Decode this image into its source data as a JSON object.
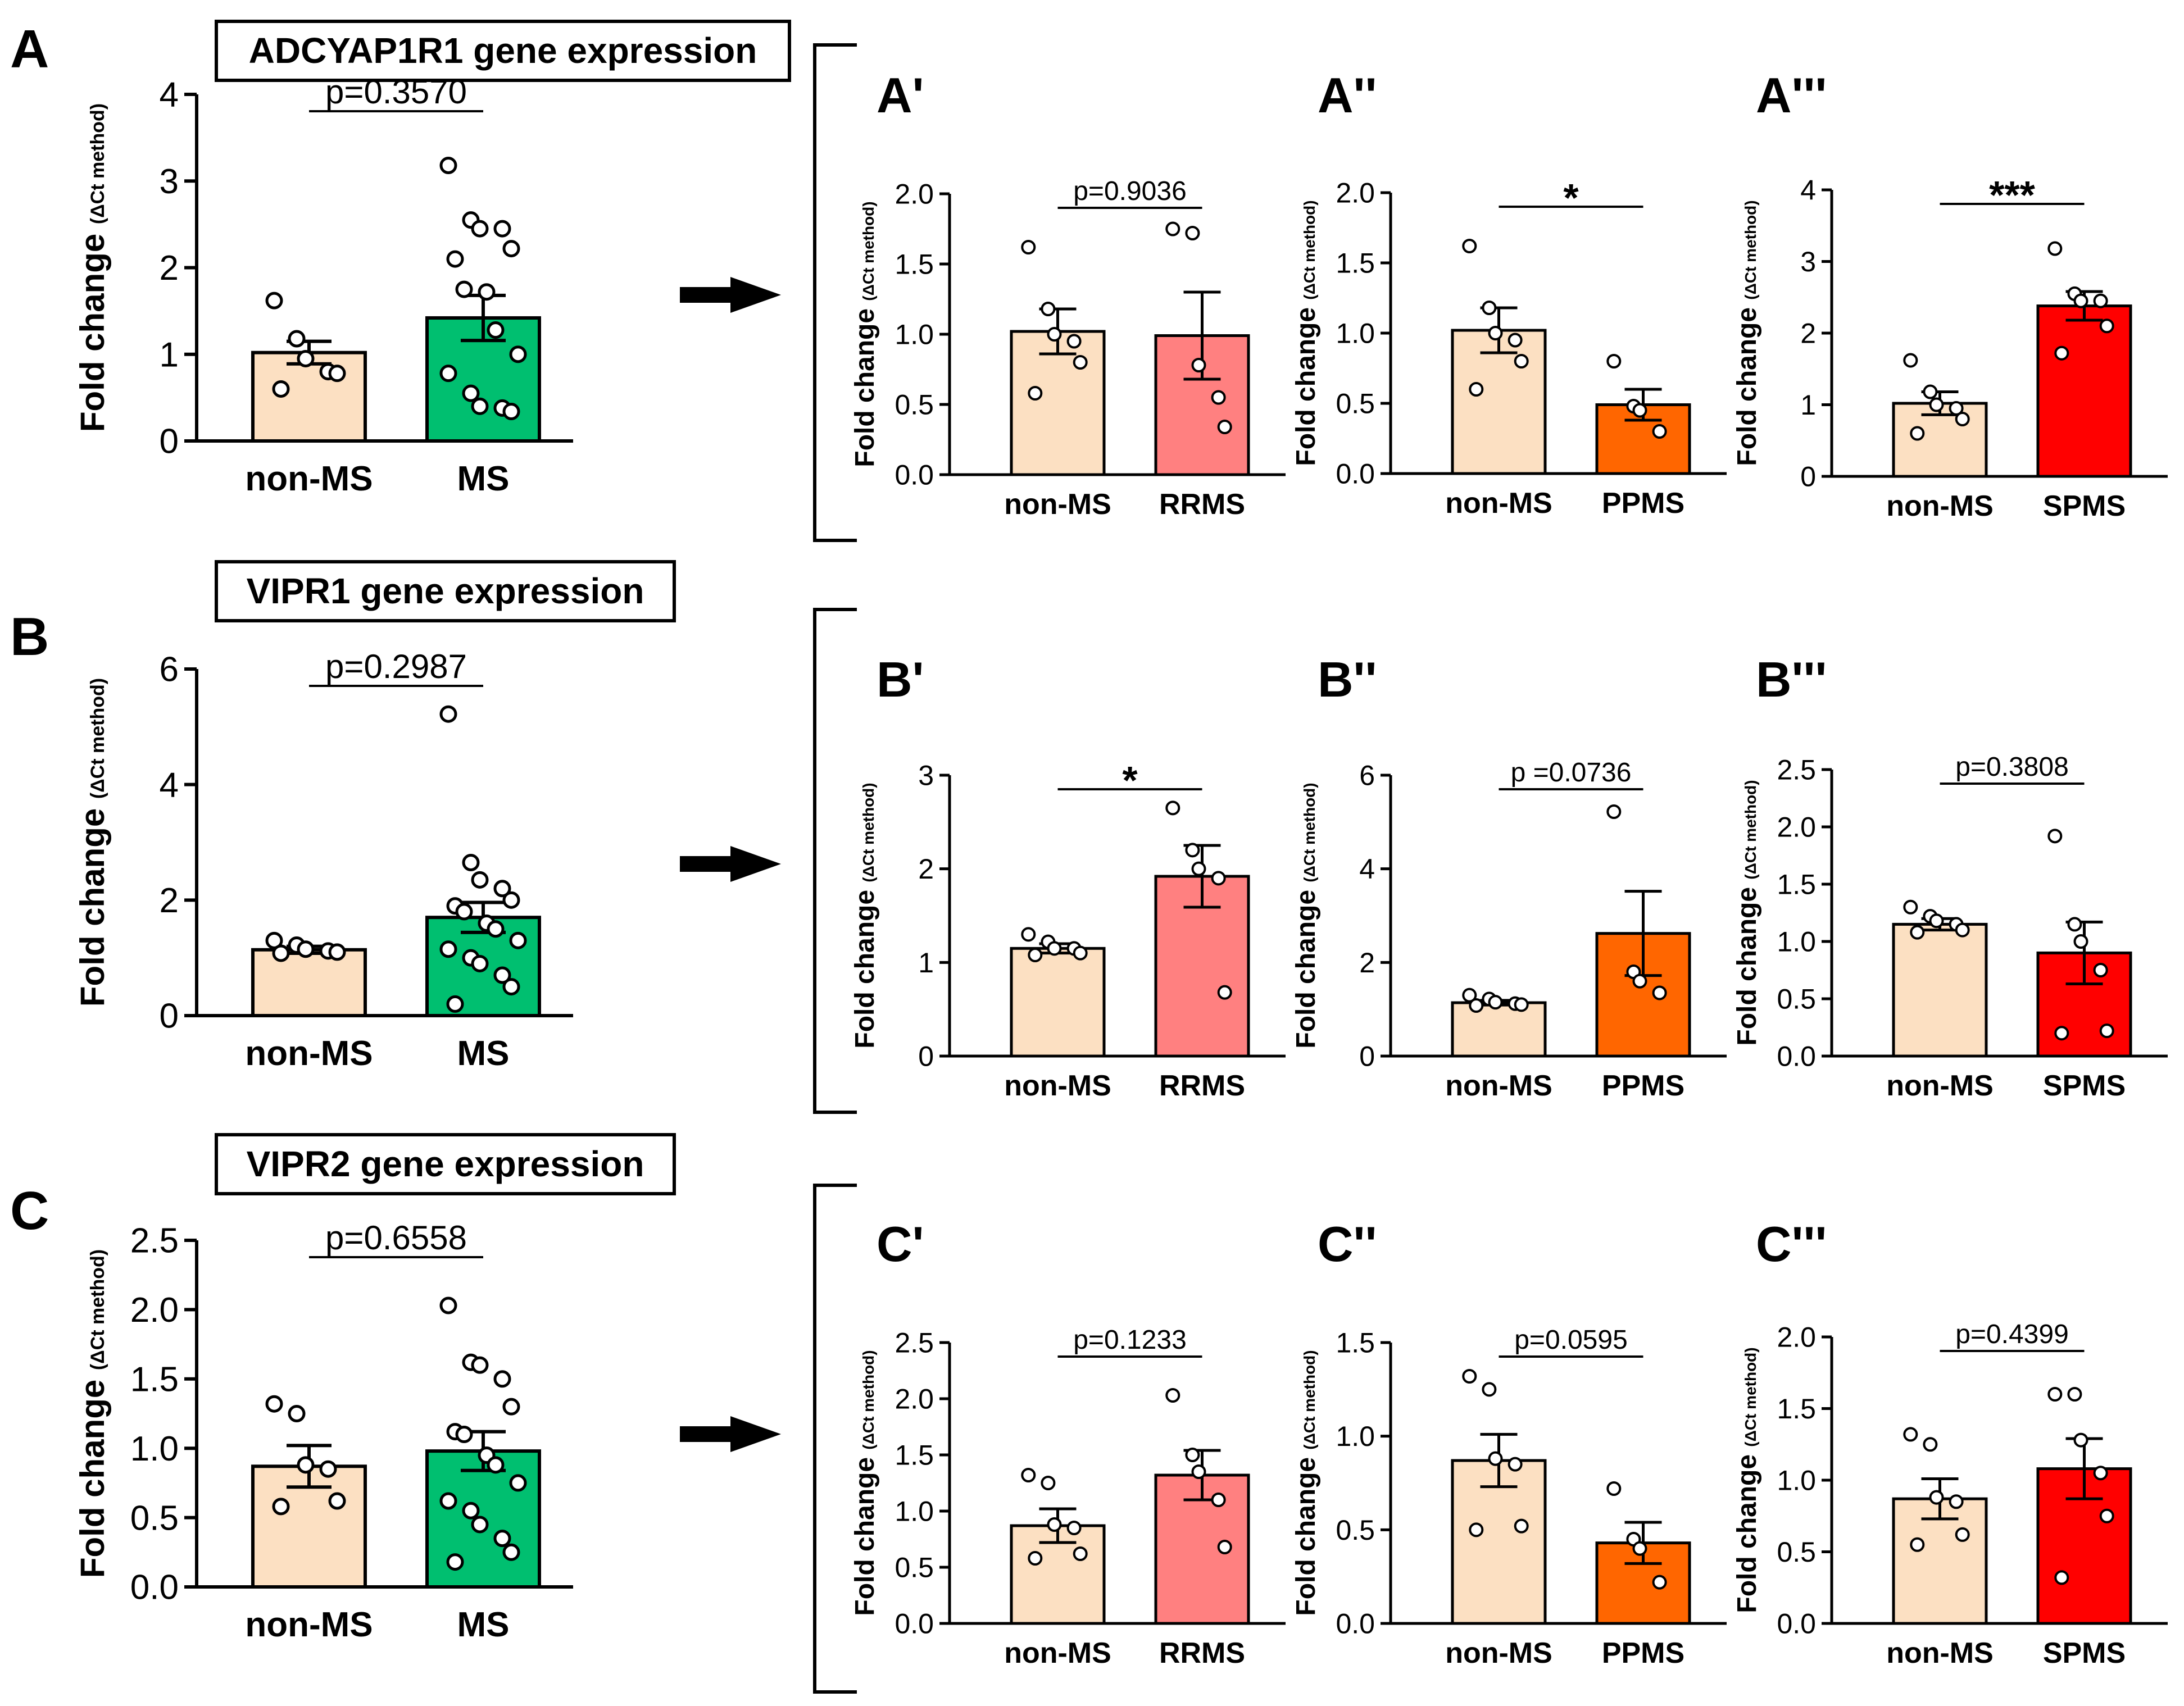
{
  "colors": {
    "non_ms": "#FCE0C2",
    "ms": "#00BF70",
    "rrms": "#FF8080",
    "ppms": "#FF6600",
    "spms": "#FF0000"
  },
  "rows": [
    {
      "letter": "A",
      "box_title": "ADCYAP1R1 gene expression",
      "main": {
        "ymax": 4,
        "ticks": [
          "0",
          "1",
          "2",
          "3",
          "4"
        ],
        "sig": "p=0.3570",
        "bars": [
          {
            "label": "non-MS",
            "value": 1.02,
            "sem": 0.13,
            "color_key": "non_ms",
            "points": [
              1.62,
              1.18,
              0.95,
              0.8,
              0.78,
              0.6
            ]
          },
          {
            "label": "MS",
            "value": 1.42,
            "sem": 0.26,
            "color_key": "ms",
            "points": [
              3.18,
              2.55,
              2.45,
              2.45,
              2.22,
              2.1,
              1.75,
              1.72,
              1.28,
              1.0,
              0.78,
              0.55,
              0.4,
              0.38,
              0.34
            ]
          }
        ]
      },
      "subs": [
        {
          "letter": "A'",
          "ymax": 2.0,
          "ticks": [
            "0.0",
            "0.5",
            "1.0",
            "1.5",
            "2.0"
          ],
          "sig": "p=0.9036",
          "bars": [
            {
              "label": "non-MS",
              "value": 1.02,
              "sem": 0.16,
              "color_key": "non_ms",
              "points": [
                1.62,
                1.18,
                1.0,
                0.95,
                0.8,
                0.58
              ]
            },
            {
              "label": "RRMS",
              "value": 0.99,
              "sem": 0.31,
              "color_key": "rrms",
              "points": [
                1.75,
                1.72,
                0.78,
                0.55,
                0.34
              ]
            }
          ]
        },
        {
          "letter": "A''",
          "ymax": 2.0,
          "ticks": [
            "0.0",
            "0.5",
            "1.0",
            "1.5",
            "2.0"
          ],
          "sig": "*",
          "bars": [
            {
              "label": "non-MS",
              "value": 1.02,
              "sem": 0.16,
              "color_key": "non_ms",
              "points": [
                1.62,
                1.18,
                1.0,
                0.95,
                0.8,
                0.6
              ]
            },
            {
              "label": "PPMS",
              "value": 0.49,
              "sem": 0.11,
              "color_key": "ppms",
              "points": [
                0.8,
                0.48,
                0.45,
                0.3
              ]
            }
          ]
        },
        {
          "letter": "A'''",
          "ymax": 4,
          "ticks": [
            "0",
            "1",
            "2",
            "3",
            "4"
          ],
          "sig": "***",
          "bars": [
            {
              "label": "non-MS",
              "value": 1.02,
              "sem": 0.16,
              "color_key": "non_ms",
              "points": [
                1.62,
                1.18,
                1.0,
                0.95,
                0.8,
                0.6
              ]
            },
            {
              "label": "SPMS",
              "value": 2.38,
              "sem": 0.2,
              "color_key": "spms",
              "points": [
                3.18,
                2.55,
                2.45,
                2.45,
                2.1,
                1.72
              ]
            }
          ]
        }
      ]
    },
    {
      "letter": "B",
      "box_title": "VIPR1 gene expression",
      "main": {
        "ymax": 6,
        "ticks": [
          "0",
          "2",
          "4",
          "6"
        ],
        "sig": "p=0.2987",
        "bars": [
          {
            "label": "non-MS",
            "value": 1.14,
            "sem": 0.06,
            "color_key": "non_ms",
            "points": [
              1.3,
              1.22,
              1.15,
              1.12,
              1.1,
              1.08
            ]
          },
          {
            "label": "MS",
            "value": 1.7,
            "sem": 0.26,
            "color_key": "ms",
            "points": [
              5.22,
              2.65,
              2.35,
              2.2,
              2.0,
              1.9,
              1.8,
              1.6,
              1.5,
              1.3,
              1.15,
              1.0,
              0.9,
              0.7,
              0.5,
              0.2
            ]
          }
        ]
      },
      "subs": [
        {
          "letter": "B'",
          "ymax": 3,
          "ticks": [
            "0",
            "1",
            "2",
            "3"
          ],
          "sig": "*",
          "bars": [
            {
              "label": "non-MS",
              "value": 1.15,
              "sem": 0.05,
              "color_key": "non_ms",
              "points": [
                1.3,
                1.22,
                1.15,
                1.15,
                1.1,
                1.08
              ]
            },
            {
              "label": "RRMS",
              "value": 1.92,
              "sem": 0.33,
              "color_key": "rrms",
              "points": [
                2.65,
                2.2,
                2.0,
                1.9,
                0.68
              ]
            }
          ]
        },
        {
          "letter": "B''",
          "ymax": 6,
          "ticks": [
            "0",
            "2",
            "4",
            "6"
          ],
          "sig": "p =0.0736",
          "bars": [
            {
              "label": "non-MS",
              "value": 1.14,
              "sem": 0.05,
              "color_key": "non_ms",
              "points": [
                1.3,
                1.22,
                1.15,
                1.12,
                1.1,
                1.08
              ]
            },
            {
              "label": "PPMS",
              "value": 2.62,
              "sem": 0.9,
              "color_key": "ppms",
              "points": [
                5.22,
                1.8,
                1.6,
                1.35
              ]
            }
          ]
        },
        {
          "letter": "B'''",
          "ymax": 2.5,
          "ticks": [
            "0.0",
            "0.5",
            "1.0",
            "1.5",
            "2.0",
            "2.5"
          ],
          "sig": "p=0.3808",
          "bars": [
            {
              "label": "non-MS",
              "value": 1.15,
              "sem": 0.05,
              "color_key": "non_ms",
              "points": [
                1.3,
                1.22,
                1.18,
                1.15,
                1.1,
                1.08
              ]
            },
            {
              "label": "SPMS",
              "value": 0.9,
              "sem": 0.27,
              "color_key": "spms",
              "points": [
                1.92,
                1.15,
                1.0,
                0.75,
                0.22,
                0.2
              ]
            }
          ]
        }
      ]
    },
    {
      "letter": "C",
      "box_title": "VIPR2 gene expression",
      "main": {
        "ymax": 2.5,
        "ticks": [
          "0.0",
          "0.5",
          "1.0",
          "1.5",
          "2.0",
          "2.5"
        ],
        "sig": "p=0.6558",
        "bars": [
          {
            "label": "non-MS",
            "value": 0.87,
            "sem": 0.15,
            "color_key": "non_ms",
            "points": [
              1.32,
              1.25,
              0.88,
              0.85,
              0.62,
              0.58
            ]
          },
          {
            "label": "MS",
            "value": 0.98,
            "sem": 0.14,
            "color_key": "ms",
            "points": [
              2.03,
              1.62,
              1.6,
              1.5,
              1.3,
              1.12,
              1.1,
              0.95,
              0.88,
              0.75,
              0.62,
              0.55,
              0.45,
              0.35,
              0.25,
              0.18
            ]
          }
        ]
      },
      "subs": [
        {
          "letter": "C'",
          "ymax": 2.5,
          "ticks": [
            "0.0",
            "0.5",
            "1.0",
            "1.5",
            "2.0",
            "2.5"
          ],
          "sig": "p=0.1233",
          "bars": [
            {
              "label": "non-MS",
              "value": 0.87,
              "sem": 0.15,
              "color_key": "non_ms",
              "points": [
                1.32,
                1.25,
                0.88,
                0.85,
                0.62,
                0.58
              ]
            },
            {
              "label": "RRMS",
              "value": 1.32,
              "sem": 0.22,
              "color_key": "rrms",
              "points": [
                2.03,
                1.5,
                1.35,
                1.1,
                0.68
              ]
            }
          ]
        },
        {
          "letter": "C''",
          "ymax": 1.5,
          "ticks": [
            "0.0",
            "0.5",
            "1.0",
            "1.5"
          ],
          "sig": "p=0.0595",
          "bars": [
            {
              "label": "non-MS",
              "value": 0.87,
              "sem": 0.14,
              "color_key": "non_ms",
              "points": [
                1.32,
                1.25,
                0.88,
                0.85,
                0.52,
                0.5
              ]
            },
            {
              "label": "PPMS",
              "value": 0.43,
              "sem": 0.11,
              "color_key": "ppms",
              "points": [
                0.72,
                0.45,
                0.4,
                0.22
              ]
            }
          ]
        },
        {
          "letter": "C'''",
          "ymax": 2.0,
          "ticks": [
            "0.0",
            "0.5",
            "1.0",
            "1.5",
            "2.0"
          ],
          "sig": "p=0.4399",
          "bars": [
            {
              "label": "non-MS",
              "value": 0.87,
              "sem": 0.14,
              "color_key": "non_ms",
              "points": [
                1.32,
                1.25,
                0.88,
                0.85,
                0.62,
                0.55
              ]
            },
            {
              "label": "SPMS",
              "value": 1.08,
              "sem": 0.21,
              "color_key": "spms",
              "points": [
                1.6,
                1.6,
                1.28,
                1.05,
                0.75,
                0.32
              ]
            }
          ]
        }
      ]
    }
  ],
  "ylabel_main": "Fold change",
  "ylabel_sub": "(ΔCt method)",
  "chart_data": [
    {
      "type": "bar",
      "title": "ADCYAP1R1 gene expression",
      "panel": "A",
      "categories": [
        "non-MS",
        "MS"
      ],
      "values": [
        1.02,
        1.42
      ],
      "ylabel": "Fold change (ΔCt method)",
      "ylim": [
        0,
        4
      ],
      "annotation": "p=0.3570"
    },
    {
      "type": "bar",
      "panel": "A'",
      "categories": [
        "non-MS",
        "RRMS"
      ],
      "values": [
        1.02,
        0.99
      ],
      "ylim": [
        0,
        2.0
      ],
      "annotation": "p=0.9036"
    },
    {
      "type": "bar",
      "panel": "A''",
      "categories": [
        "non-MS",
        "PPMS"
      ],
      "values": [
        1.02,
        0.49
      ],
      "ylim": [
        0,
        2.0
      ],
      "annotation": "*"
    },
    {
      "type": "bar",
      "panel": "A'''",
      "categories": [
        "non-MS",
        "SPMS"
      ],
      "values": [
        1.02,
        2.38
      ],
      "ylim": [
        0,
        4
      ],
      "annotation": "***"
    },
    {
      "type": "bar",
      "title": "VIPR1 gene expression",
      "panel": "B",
      "categories": [
        "non-MS",
        "MS"
      ],
      "values": [
        1.14,
        1.7
      ],
      "ylim": [
        0,
        6
      ],
      "annotation": "p=0.2987"
    },
    {
      "type": "bar",
      "panel": "B'",
      "categories": [
        "non-MS",
        "RRMS"
      ],
      "values": [
        1.15,
        1.92
      ],
      "ylim": [
        0,
        3
      ],
      "annotation": "*"
    },
    {
      "type": "bar",
      "panel": "B''",
      "categories": [
        "non-MS",
        "PPMS"
      ],
      "values": [
        1.14,
        2.62
      ],
      "ylim": [
        0,
        6
      ],
      "annotation": "p =0.0736"
    },
    {
      "type": "bar",
      "panel": "B'''",
      "categories": [
        "non-MS",
        "SPMS"
      ],
      "values": [
        1.15,
        0.9
      ],
      "ylim": [
        0,
        2.5
      ],
      "annotation": "p=0.3808"
    },
    {
      "type": "bar",
      "title": "VIPR2 gene expression",
      "panel": "C",
      "categories": [
        "non-MS",
        "MS"
      ],
      "values": [
        0.87,
        0.98
      ],
      "ylim": [
        0,
        2.5
      ],
      "annotation": "p=0.6558"
    },
    {
      "type": "bar",
      "panel": "C'",
      "categories": [
        "non-MS",
        "RRMS"
      ],
      "values": [
        0.87,
        1.32
      ],
      "ylim": [
        0,
        2.5
      ],
      "annotation": "p=0.1233"
    },
    {
      "type": "bar",
      "panel": "C''",
      "categories": [
        "non-MS",
        "PPMS"
      ],
      "values": [
        0.87,
        0.43
      ],
      "ylim": [
        0,
        1.5
      ],
      "annotation": "p=0.0595"
    },
    {
      "type": "bar",
      "panel": "C'''",
      "categories": [
        "non-MS",
        "SPMS"
      ],
      "values": [
        0.87,
        1.08
      ],
      "ylim": [
        0,
        2.0
      ],
      "annotation": "p=0.4399"
    }
  ]
}
